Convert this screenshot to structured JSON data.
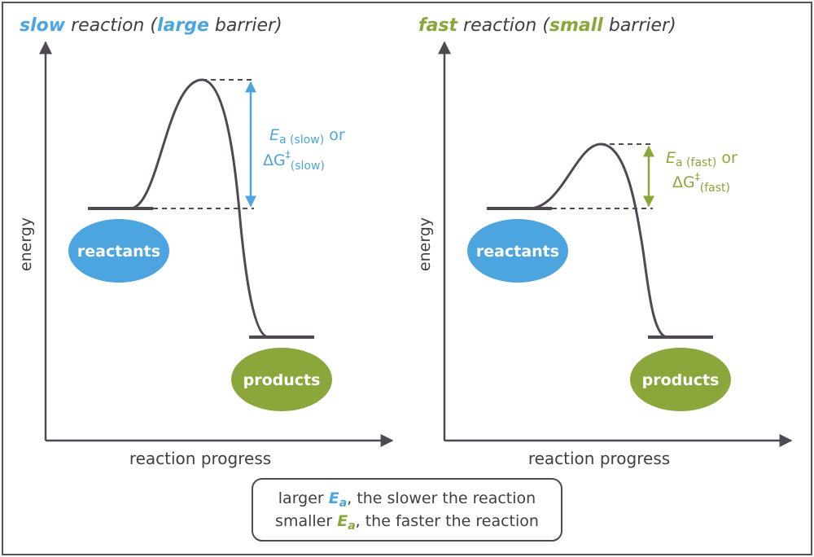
{
  "colors": {
    "blue": "#4ca5df",
    "green": "#8ba63a",
    "curve": "#4f4a52",
    "text": "#3f3f3f",
    "frame": "#555555"
  },
  "left_panel": {
    "title": {
      "part1": "slow",
      "part2": " reaction (",
      "part3": "large",
      "part4": " barrier)"
    },
    "axis_y": "energy",
    "axis_x": "reaction progress",
    "reactants": "reactants",
    "products": "products",
    "label": {
      "E": "E",
      "a": "a",
      "sub": " (slow)",
      "or": " or",
      "delta": "ΔG",
      "dagger": "‡",
      "sub2": "(slow)"
    }
  },
  "right_panel": {
    "title": {
      "part1": "fast",
      "part2": " reaction (",
      "part3": "small",
      "part4": " barrier)"
    },
    "axis_y": "energy",
    "axis_x": "reaction progress",
    "reactants": "reactants",
    "products": "products",
    "label": {
      "E": "E",
      "a": "a",
      "sub": " (fast)",
      "or": " or",
      "delta": "ΔG",
      "dagger": "‡",
      "sub2": "(fast)"
    }
  },
  "summary": {
    "line1_pre": "larger ",
    "line1_post": ", the slower the reaction",
    "line2_pre": "smaller ",
    "line2_post": ", the faster the reaction",
    "E": "E",
    "a": "a"
  }
}
